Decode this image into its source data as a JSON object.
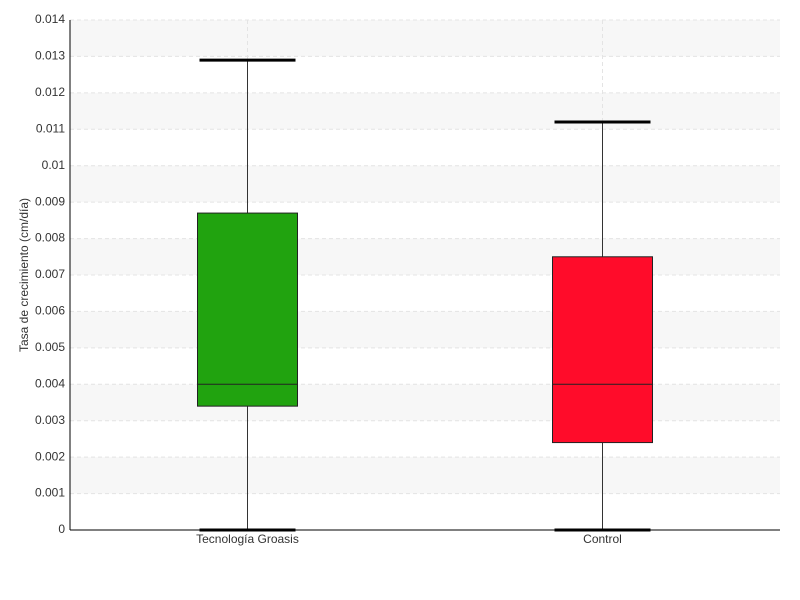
{
  "chart_data": {
    "type": "box",
    "y_label": "Tasa de crecimiento (cm/día)",
    "categories": [
      "Tecnología Groasis",
      "Control"
    ],
    "boxes": [
      {
        "color": "#21a30f",
        "low": 0,
        "q1": 0.0034,
        "median": 0.004,
        "q3": 0.0087,
        "high": 0.0129
      },
      {
        "color": "#ff0c2a",
        "low": 0,
        "q1": 0.0024,
        "median": 0.004,
        "q3": 0.0075,
        "high": 0.0112
      }
    ],
    "ylim": [
      0,
      0.014
    ],
    "yticks": [
      0,
      0.001,
      0.002,
      0.003,
      0.004,
      0.005,
      0.006,
      0.007,
      0.008,
      0.009,
      0.01,
      0.011,
      0.012,
      0.013,
      0.014
    ],
    "grid": true
  }
}
